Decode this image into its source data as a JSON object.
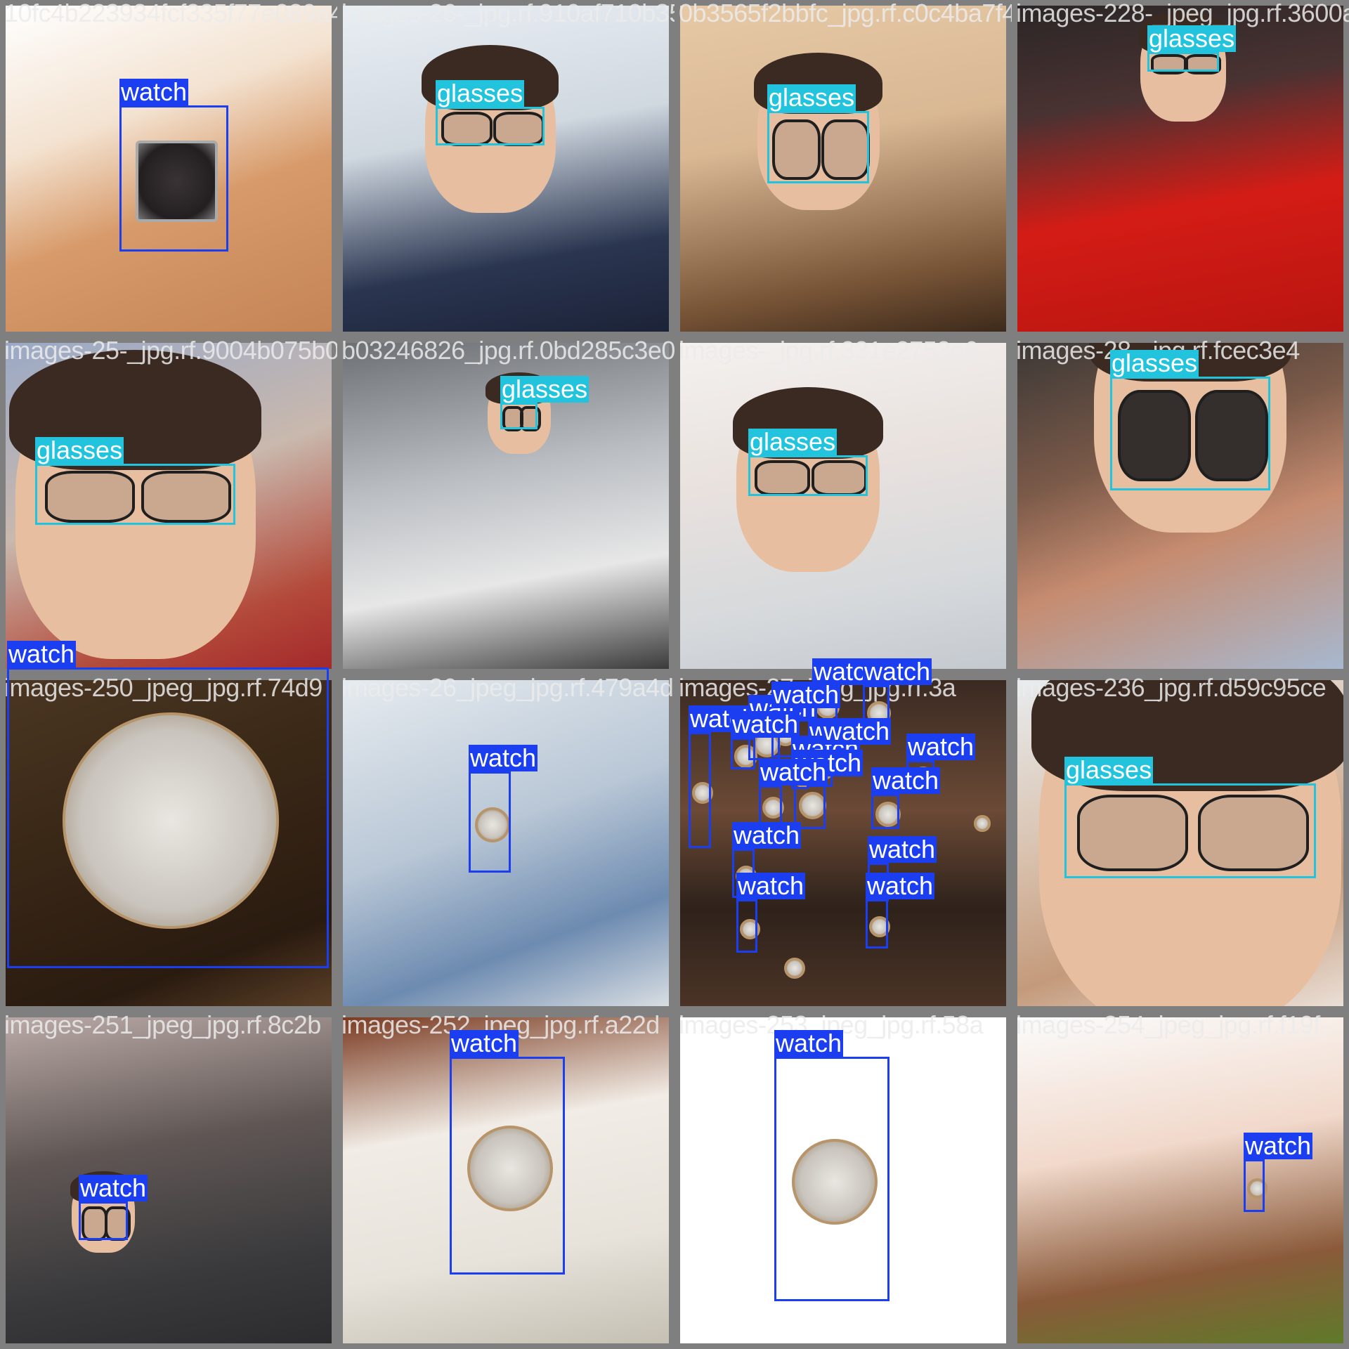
{
  "labels": {
    "watch": "watch",
    "glasses": "glasses"
  },
  "colors": {
    "watch": "#1b3ff0",
    "glasses": "#22c3dc",
    "grid": "#7f7f7f"
  },
  "tiles": [
    {
      "filename": "10fc4b223934fcf335f77e089a4f69e2_jpg.rf.910af7",
      "scene": "wrist-watch-closeup",
      "detections": [
        {
          "label": "watch"
        }
      ]
    },
    {
      "filename": "images-26-_jpg.rf.910af710b3565f2bbfcf",
      "scene": "young-man-navy-jacket",
      "detections": [
        {
          "label": "glasses"
        }
      ]
    },
    {
      "filename": "0b3565f2bbfc_jpg.rf.c0c4ba7f4a",
      "scene": "woman-adjusting-glasses",
      "detections": [
        {
          "label": "glasses"
        }
      ]
    },
    {
      "filename": "images-228-_jpeg_jpg.rf.3600a3c",
      "scene": "man-red-hoodie",
      "detections": [
        {
          "label": "glasses"
        }
      ]
    },
    {
      "filename": "images-25-_jpg.rf.9004b075b03246826",
      "scene": "boy-red-shirt",
      "detections": [
        {
          "label": "glasses"
        }
      ]
    },
    {
      "filename": "b03246826_jpg.rf.0bd285c3e0",
      "scene": "man-leaning-wall",
      "detections": [
        {
          "label": "glasses"
        }
      ]
    },
    {
      "filename": "images-_jpg.rf.331e2753e6",
      "scene": "man-white-tshirt",
      "detections": [
        {
          "label": "glasses"
        }
      ]
    },
    {
      "filename": "images-28-_jpg.rf.fcec3e4",
      "scene": "man-selfie-sunglasses",
      "detections": [
        {
          "label": "glasses"
        }
      ]
    },
    {
      "filename": "images-250_jpeg_jpg.rf.74d9",
      "scene": "gold-watch-wood",
      "detections": [
        {
          "label": "watch"
        }
      ]
    },
    {
      "filename": "images-26_jpeg_jpg.rf.479a4d",
      "scene": "hand-watch-desk",
      "detections": [
        {
          "label": "watch"
        }
      ]
    },
    {
      "filename": "images-27_jpeg_jpg.rf.3a",
      "scene": "many-wrists",
      "detections": [
        {
          "label": "watch"
        },
        {
          "label": "watch"
        },
        {
          "label": "watch"
        },
        {
          "label": "watch"
        },
        {
          "label": "watch"
        },
        {
          "label": "watch"
        },
        {
          "label": "watch"
        },
        {
          "label": "watch"
        },
        {
          "label": "watch"
        },
        {
          "label": "watch"
        },
        {
          "label": "watch"
        },
        {
          "label": "watch"
        },
        {
          "label": "watch"
        },
        {
          "label": "watch"
        },
        {
          "label": "watch"
        },
        {
          "label": "watch"
        },
        {
          "label": "watch"
        }
      ]
    },
    {
      "filename": "images-236_jpg.rf.d59c95ce",
      "scene": "man-face-glasses",
      "detections": [
        {
          "label": "glasses"
        }
      ]
    },
    {
      "filename": "images-251_jpeg_jpg.rf.8c2b",
      "scene": "man-grey-shirt",
      "detections": [
        {
          "label": "watch"
        }
      ]
    },
    {
      "filename": "images-252_jpeg_jpg.rf.a22d",
      "scene": "fossil-watch-glove",
      "detections": [
        {
          "label": "watch"
        }
      ]
    },
    {
      "filename": "images-253_jpeg_jpg.rf.58a",
      "scene": "steel-watch-product",
      "detections": [
        {
          "label": "watch"
        }
      ]
    },
    {
      "filename": "images-254_jpeg_jpg.rf.f19f",
      "scene": "woman-fashion-watch",
      "detections": [
        {
          "label": "watch"
        }
      ]
    }
  ]
}
